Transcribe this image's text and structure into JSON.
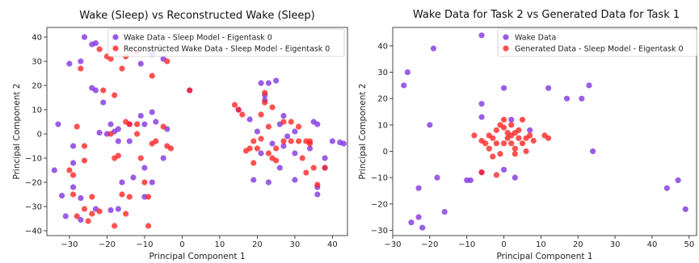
{
  "chart_data": [
    {
      "type": "scatter",
      "title": "Wake (Sleep) vs Reconstructed Wake (Sleep)",
      "xlabel": "Principal Component 1",
      "ylabel": "Principal Component 2",
      "xlim": [
        -36,
        44
      ],
      "ylim": [
        -42,
        44
      ],
      "xticks": [
        -30,
        -20,
        -10,
        0,
        10,
        20,
        30,
        40
      ],
      "yticks": [
        -40,
        -30,
        -20,
        -10,
        0,
        10,
        20,
        30,
        40
      ],
      "legend_position": "top-right",
      "series": [
        {
          "name": "Wake Data - Sleep Model - Eigentask 0",
          "color": "#7f2fe0",
          "points": [
            [
              -26,
              40
            ],
            [
              -24,
              37
            ],
            [
              -23,
              37.5
            ],
            [
              -30,
              29
            ],
            [
              -27,
              30
            ],
            [
              -24,
              19
            ],
            [
              -23,
              18
            ],
            [
              -21,
              13
            ],
            [
              -19,
              4
            ],
            [
              -22,
              0.5
            ],
            [
              -20,
              0
            ],
            [
              -18,
              1
            ],
            [
              -29,
              -5
            ],
            [
              -33,
              4
            ],
            [
              -32,
              -25.5
            ],
            [
              -31,
              -34
            ],
            [
              -29,
              -12
            ],
            [
              -29,
              -22
            ],
            [
              -27,
              -26.5
            ],
            [
              -27,
              -35.5
            ],
            [
              -23,
              -31
            ],
            [
              -34,
              -15
            ],
            [
              -17,
              -31
            ],
            [
              -19,
              -31.5
            ],
            [
              -16,
              -20
            ],
            [
              -13,
              -18
            ],
            [
              -10,
              -26
            ],
            [
              -8,
              -20
            ],
            [
              -10,
              -14
            ],
            [
              -14,
              -3
            ],
            [
              -17,
              -3
            ],
            [
              -14,
              4
            ],
            [
              -11,
              7.5
            ],
            [
              -10,
              4
            ],
            [
              -8,
              9
            ],
            [
              -7,
              5
            ],
            [
              -5,
              -10
            ],
            [
              -4,
              2
            ],
            [
              -17,
              2
            ],
            [
              -11,
              29
            ],
            [
              -8,
              33
            ],
            [
              -6,
              36
            ],
            [
              -5,
              31
            ],
            [
              2,
              18
            ],
            [
              15,
              10
            ],
            [
              18,
              6
            ],
            [
              20,
              1
            ],
            [
              21,
              21
            ],
            [
              22,
              16
            ],
            [
              23,
              21
            ],
            [
              25,
              22
            ],
            [
              22,
              14
            ],
            [
              26,
              4
            ],
            [
              27,
              7.5
            ],
            [
              28,
              -1
            ],
            [
              27,
              -5
            ],
            [
              24,
              -4
            ],
            [
              21,
              -8
            ],
            [
              19,
              -19
            ],
            [
              23,
              -20
            ],
            [
              26,
              -14
            ],
            [
              30,
              -19
            ],
            [
              30,
              1
            ],
            [
              35,
              5
            ],
            [
              36,
              4
            ],
            [
              34,
              -6
            ],
            [
              36,
              -22
            ],
            [
              36,
              -25
            ],
            [
              38,
              -10
            ],
            [
              38,
              -14
            ],
            [
              42,
              -3.5
            ],
            [
              43,
              -4
            ],
            [
              40,
              -3
            ],
            [
              30,
              -8
            ]
          ]
        },
        {
          "name": "Reconstructed Wake Data - Sleep Model - Eigentask 0",
          "color": "#ff2020",
          "points": [
            [
              -22,
              35
            ],
            [
              -20,
              32
            ],
            [
              -19,
              31
            ],
            [
              -15,
              32
            ],
            [
              -12,
              34
            ],
            [
              -8,
              24
            ],
            [
              -4,
              30
            ],
            [
              -27,
              27
            ],
            [
              -21,
              18
            ],
            [
              -18,
              16
            ],
            [
              -16,
              27
            ],
            [
              -15,
              5
            ],
            [
              -19,
              0
            ],
            [
              -18,
              -10
            ],
            [
              -12,
              0
            ],
            [
              -8,
              -4
            ],
            [
              -5,
              3
            ],
            [
              -4,
              -5
            ],
            [
              -3,
              -6
            ],
            [
              -28,
              3
            ],
            [
              -26,
              -5
            ],
            [
              -26,
              -11
            ],
            [
              -30,
              -15
            ],
            [
              -29,
              -17
            ],
            [
              -29,
              -25
            ],
            [
              -24,
              -33
            ],
            [
              -22,
              -32
            ],
            [
              -26,
              -31
            ],
            [
              -24,
              -26
            ],
            [
              -28,
              -34
            ],
            [
              -25,
              -36
            ],
            [
              -17,
              -9
            ],
            [
              -16,
              -25
            ],
            [
              -14,
              4
            ],
            [
              -12,
              4
            ],
            [
              -11,
              -10
            ],
            [
              -9,
              -26
            ],
            [
              -9,
              -38
            ],
            [
              -18,
              -38
            ],
            [
              -15,
              -33
            ],
            [
              -14,
              -26
            ],
            [
              -10,
              -20
            ],
            [
              -7,
              -3
            ],
            [
              2,
              18
            ],
            [
              14,
              12
            ],
            [
              15,
              10
            ],
            [
              16,
              8
            ],
            [
              17,
              -7
            ],
            [
              18,
              -6
            ],
            [
              19,
              -3
            ],
            [
              19,
              -12
            ],
            [
              20,
              -6
            ],
            [
              21,
              -2
            ],
            [
              21,
              8
            ],
            [
              22,
              13
            ],
            [
              22,
              17
            ],
            [
              23,
              3
            ],
            [
              23,
              -8
            ],
            [
              24,
              -10
            ],
            [
              25,
              -11
            ],
            [
              25,
              -6
            ],
            [
              27,
              -3
            ],
            [
              29,
              -3
            ],
            [
              31,
              -3
            ],
            [
              33,
              -3
            ],
            [
              34,
              -4
            ],
            [
              34,
              -3
            ],
            [
              32,
              -10
            ],
            [
              33,
              -16
            ],
            [
              35,
              -14
            ],
            [
              36,
              -21
            ],
            [
              38,
              -14
            ],
            [
              24,
              11
            ],
            [
              27,
              5
            ],
            [
              29,
              5
            ],
            [
              31,
              3
            ]
          ]
        }
      ]
    },
    {
      "type": "scatter",
      "title": "Wake Data for Task 2 vs Generated Data for Task 1",
      "xlabel": "Principal Component 1",
      "ylabel": "Principal Component 2",
      "xlim": [
        -30,
        52
      ],
      "ylim": [
        -32,
        47
      ],
      "xticks": [
        -30,
        -20,
        -10,
        0,
        10,
        20,
        30,
        40,
        50
      ],
      "yticks": [
        -30,
        -20,
        -10,
        0,
        10,
        20,
        30,
        40
      ],
      "legend_position": "top-right",
      "series": [
        {
          "name": "Wake Data",
          "color": "#7f2fe0",
          "points": [
            [
              -26,
              30
            ],
            [
              -27,
              25
            ],
            [
              -19,
              39
            ],
            [
              -6,
              44
            ],
            [
              -20,
              10
            ],
            [
              -6,
              18
            ],
            [
              0,
              24
            ],
            [
              12,
              24
            ],
            [
              17,
              20
            ],
            [
              21,
              20
            ],
            [
              23,
              25
            ],
            [
              24,
              0
            ],
            [
              -18,
              -10
            ],
            [
              -23,
              -14
            ],
            [
              -16,
              -23
            ],
            [
              -23,
              -25
            ],
            [
              -25,
              -27
            ],
            [
              -22,
              -29
            ],
            [
              -10,
              -11
            ],
            [
              -9,
              -11
            ],
            [
              -6,
              -8
            ],
            [
              0,
              -7
            ],
            [
              3,
              -10
            ],
            [
              44,
              -14
            ],
            [
              47,
              -11
            ],
            [
              49,
              -22
            ],
            [
              -6,
              13
            ],
            [
              2,
              12
            ],
            [
              7,
              8
            ]
          ]
        },
        {
          "name": "Generated Data - Sleep Model - Eigentask 0",
          "color": "#ff2020",
          "points": [
            [
              -8,
              6
            ],
            [
              -6,
              4
            ],
            [
              -5,
              3
            ],
            [
              -4,
              6
            ],
            [
              -4,
              1
            ],
            [
              -3,
              -2
            ],
            [
              -2,
              8
            ],
            [
              -2,
              3
            ],
            [
              -1,
              10
            ],
            [
              0,
              12
            ],
            [
              0,
              9
            ],
            [
              1,
              5
            ],
            [
              1,
              7
            ],
            [
              2,
              10
            ],
            [
              2,
              6
            ],
            [
              2,
              3
            ],
            [
              3,
              7
            ],
            [
              3,
              1
            ],
            [
              4,
              5
            ],
            [
              4,
              8
            ],
            [
              5,
              12
            ],
            [
              5,
              3
            ],
            [
              6,
              5
            ],
            [
              6,
              0
            ],
            [
              7,
              6
            ],
            [
              8,
              4
            ],
            [
              11,
              6
            ],
            [
              12,
              5
            ],
            [
              -1,
              -1
            ],
            [
              -2,
              -9
            ],
            [
              -6,
              -8
            ],
            [
              0,
              3
            ],
            [
              -3,
              5
            ],
            [
              3,
              -1
            ]
          ]
        }
      ]
    }
  ]
}
